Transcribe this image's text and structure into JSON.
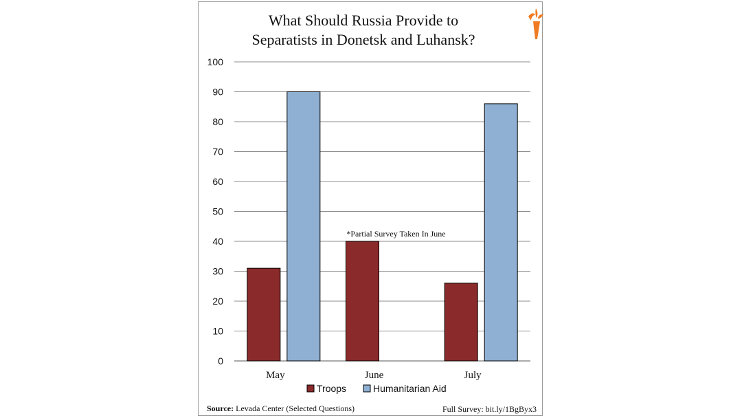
{
  "chart_data": {
    "type": "bar",
    "title_lines": [
      "What Should Russia Provide to",
      "Separatists in Donetsk and Luhansk?"
    ],
    "categories": [
      "May",
      "June",
      "July"
    ],
    "series": [
      {
        "name": "Troops",
        "color": "#8b2a2a",
        "values": [
          31,
          40,
          26
        ]
      },
      {
        "name": "Humanitarian Aid",
        "color": "#8fb0d3",
        "values": [
          90,
          null,
          86
        ]
      }
    ],
    "yticks": [
      0,
      10,
      20,
      30,
      40,
      50,
      60,
      70,
      80,
      90,
      100
    ],
    "ylim": [
      0,
      100
    ],
    "grid": true,
    "legend_position": "bottom",
    "annotation": "*Partial Survey Taken In June",
    "xlabel": "",
    "ylabel": ""
  },
  "footer": {
    "source_label": "Source:",
    "source_text": "Levada Center (Selected Questions)",
    "survey_text": "Full Survey: bit.ly/1BgByx3"
  },
  "logo": {
    "icon": "rferl-flame-logo",
    "color": "#f07b22"
  }
}
